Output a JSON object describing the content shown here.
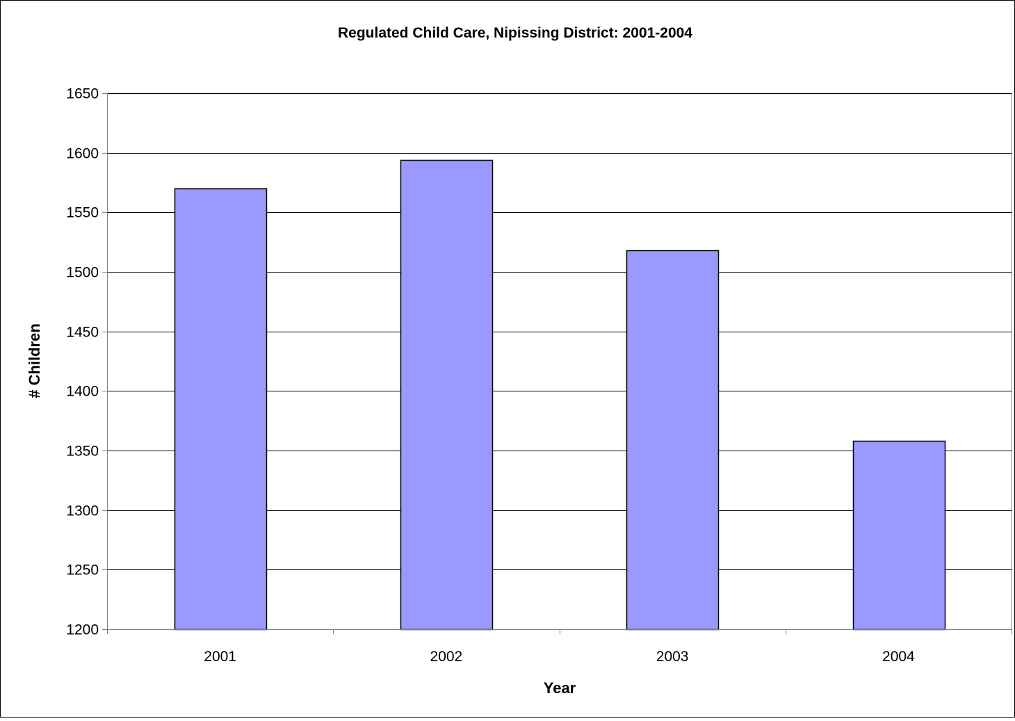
{
  "chart_data": {
    "type": "bar",
    "title": "Regulated Child Care, Nipissing District: 2001-2004",
    "xlabel": "Year",
    "ylabel": "# Children",
    "categories": [
      "2001",
      "2002",
      "2003",
      "2004"
    ],
    "values": [
      1570,
      1594,
      1518,
      1358
    ],
    "ylim": [
      1200,
      1650
    ],
    "yticks": [
      "1200",
      "1250",
      "1300",
      "1350",
      "1400",
      "1450",
      "1500",
      "1550",
      "1600",
      "1650"
    ],
    "grid": true,
    "legend": "none",
    "colors": {
      "bar_fill": "#9999ff",
      "bar_stroke": "#000000",
      "grid": "#000000",
      "axis": "#808080",
      "border": "#000000"
    }
  }
}
